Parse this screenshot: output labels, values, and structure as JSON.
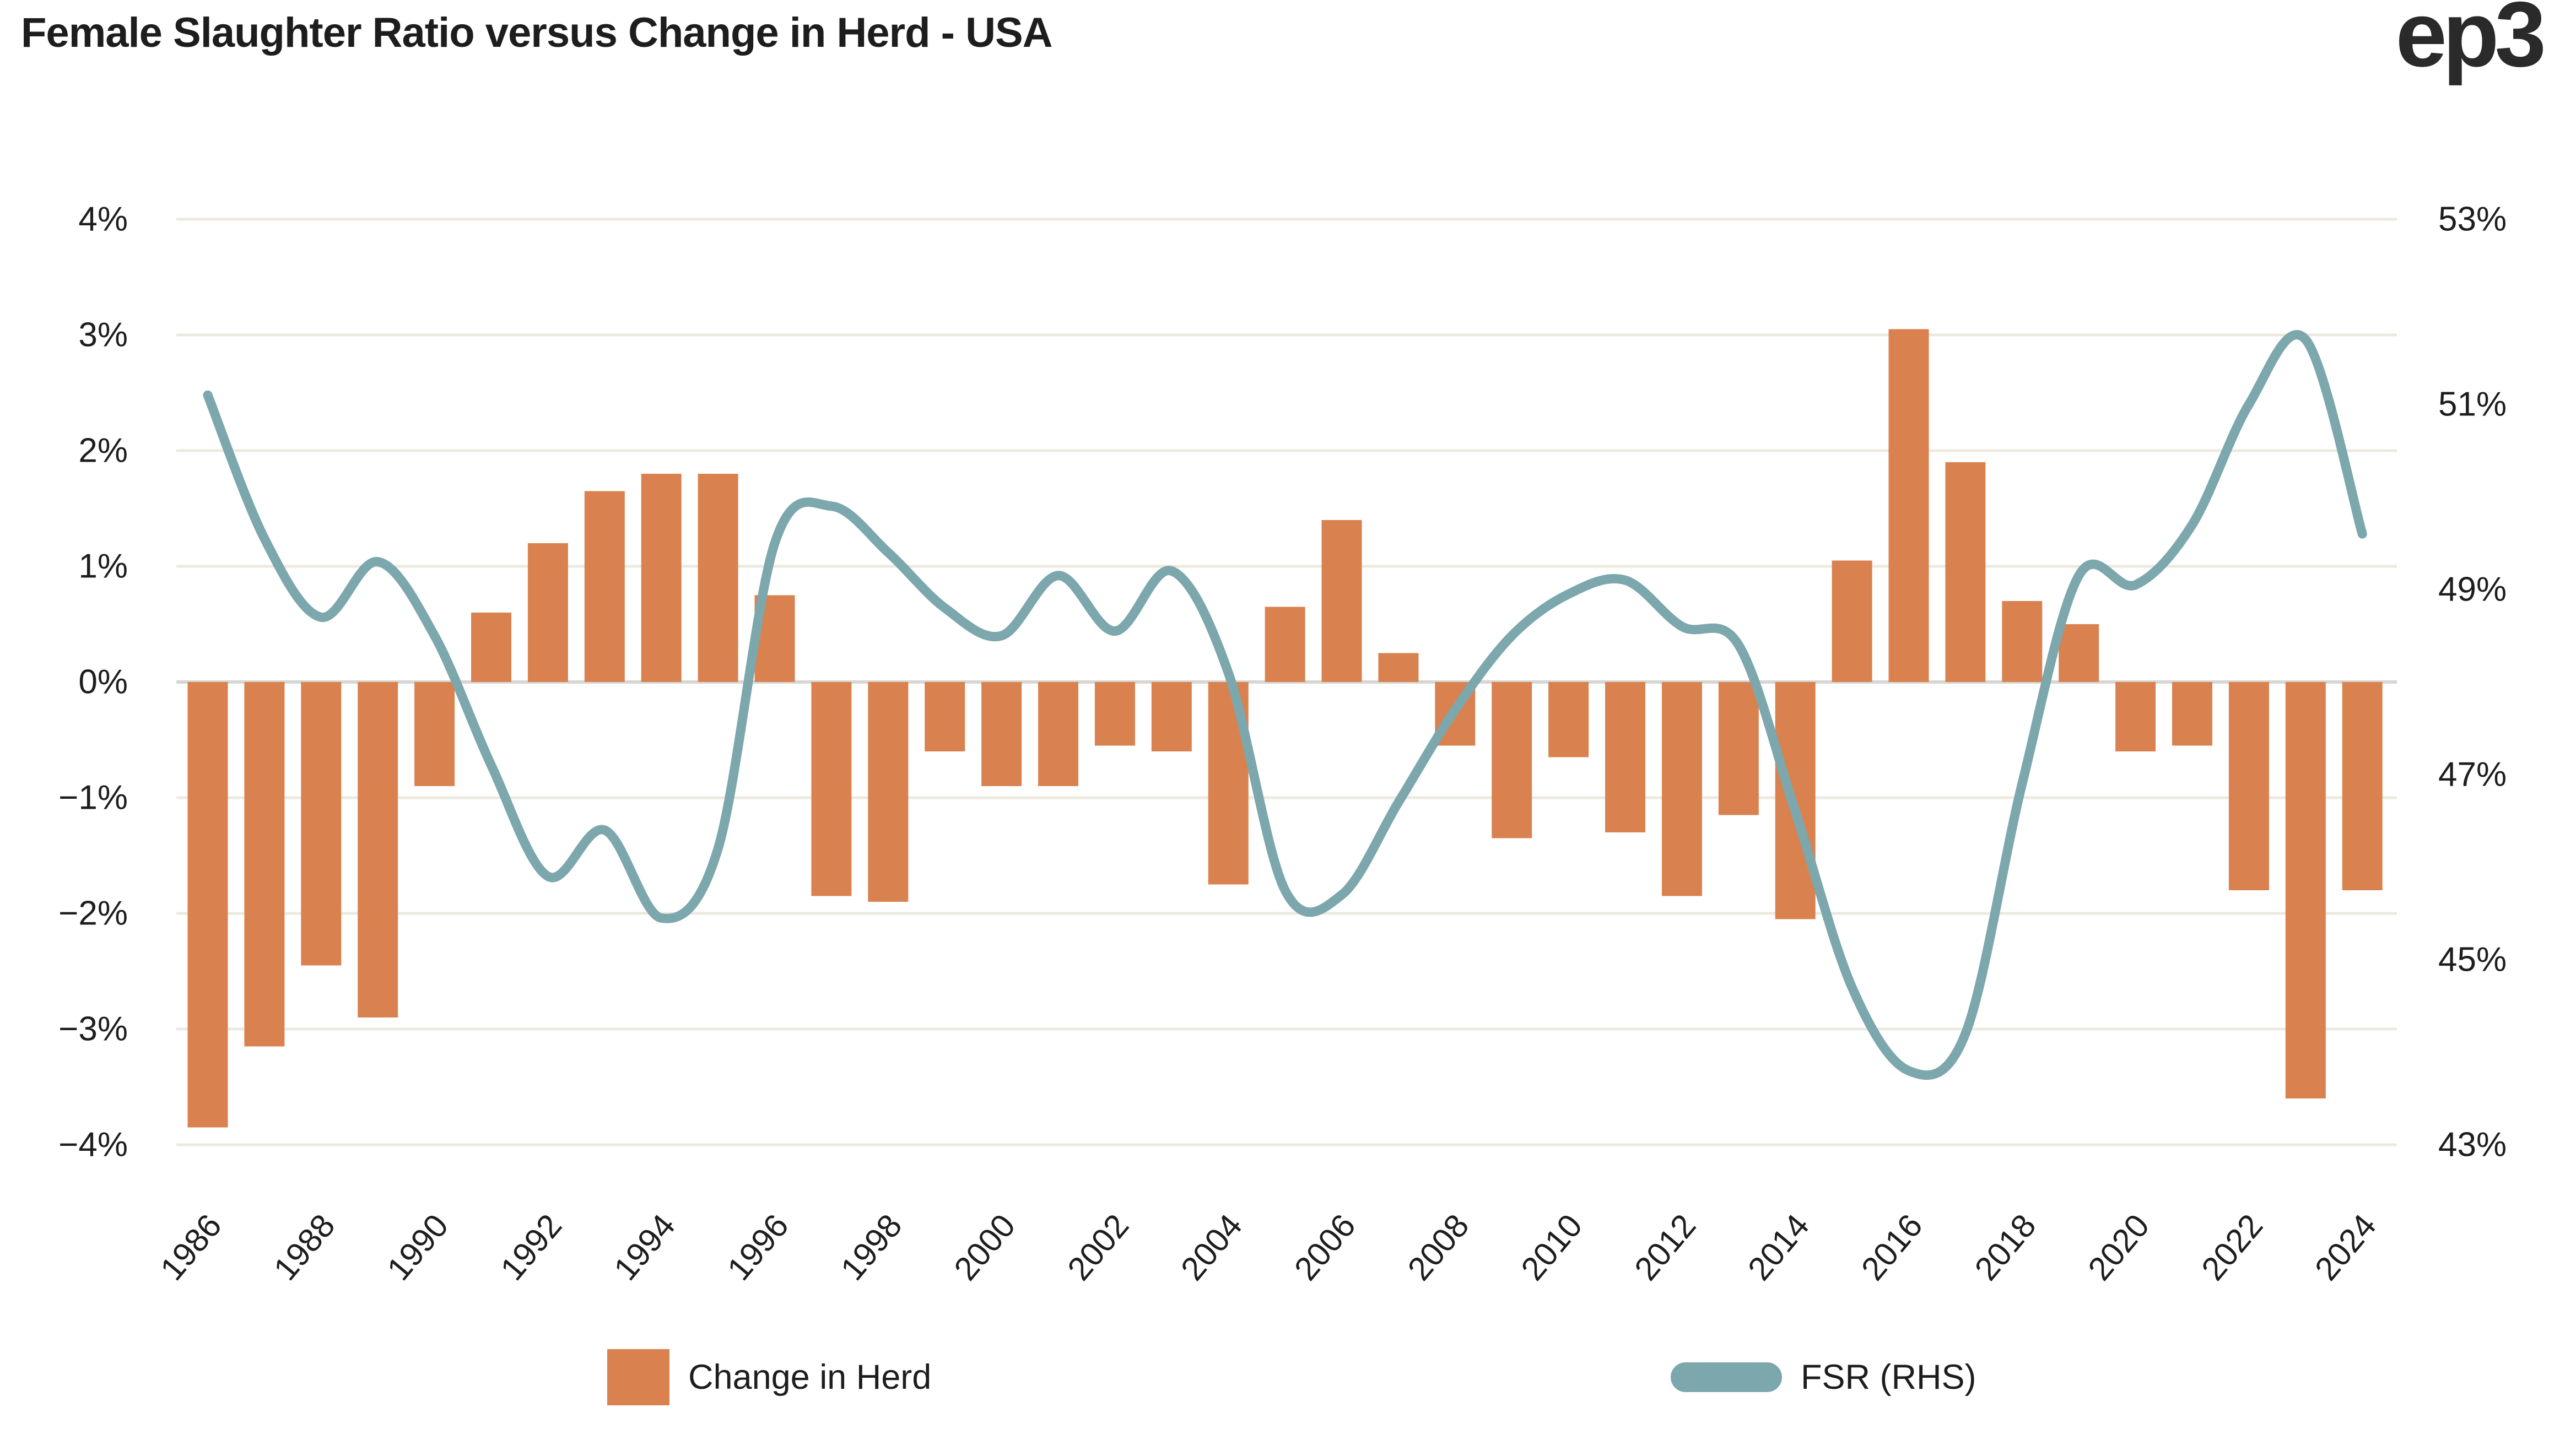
{
  "title": "Female Slaughter Ratio versus Change in Herd - USA",
  "logo": "ep3",
  "legend": {
    "items": [
      {
        "label": "Change in Herd",
        "swatch": "orange-square"
      },
      {
        "label": "FSR (RHS)",
        "swatch": "teal-line"
      }
    ]
  },
  "colors": {
    "bar": "#D9824F",
    "line": "#7CA7AC",
    "grid": "#EDE9DE",
    "zero_line": "#D7D6D3",
    "text": "#1D1D1D",
    "background": "#FFFFFF"
  },
  "chart_data": {
    "type": "combo",
    "title": "Female Slaughter Ratio versus Change in Herd - USA",
    "categories": [
      1986,
      1987,
      1988,
      1989,
      1990,
      1991,
      1992,
      1993,
      1994,
      1995,
      1996,
      1997,
      1998,
      1999,
      2000,
      2001,
      2002,
      2003,
      2004,
      2005,
      2006,
      2007,
      2008,
      2009,
      2010,
      2011,
      2012,
      2013,
      2014,
      2015,
      2016,
      2017,
      2018,
      2019,
      2020,
      2021,
      2022,
      2023,
      2024
    ],
    "series": [
      {
        "name": "Change in Herd",
        "type": "bar",
        "axis": "left",
        "values": [
          -3.85,
          -3.15,
          -2.45,
          -2.9,
          -0.9,
          0.6,
          1.2,
          1.65,
          1.8,
          1.8,
          0.75,
          -1.85,
          -1.9,
          -0.6,
          -0.9,
          -0.9,
          -0.55,
          -0.6,
          -1.75,
          0.65,
          1.4,
          0.25,
          -0.55,
          -1.35,
          -0.65,
          -1.3,
          -1.85,
          -1.15,
          -2.05,
          1.05,
          3.05,
          1.9,
          0.7,
          0.5,
          -0.6,
          -0.55,
          -1.8,
          -3.6,
          -1.8
        ]
      },
      {
        "name": "FSR (RHS)",
        "type": "line",
        "axis": "right",
        "values": [
          51.1,
          49.55,
          48.7,
          49.3,
          48.5,
          47.1,
          45.9,
          46.4,
          45.45,
          46.2,
          49.5,
          49.9,
          49.4,
          48.8,
          48.5,
          49.15,
          48.55,
          49.2,
          48.1,
          45.75,
          45.7,
          46.7,
          47.7,
          48.5,
          48.95,
          49.1,
          48.6,
          48.4,
          46.6,
          44.7,
          43.8,
          44.2,
          46.9,
          49.15,
          49.05,
          49.7,
          51.0,
          51.7,
          49.6
        ]
      }
    ],
    "left_axis": {
      "tick_labels": [
        "4%",
        "3%",
        "2%",
        "1%",
        "0%",
        "−1%",
        "−2%",
        "−3%",
        "−4%"
      ],
      "tick_values": [
        4,
        3,
        2,
        1,
        0,
        -1,
        -2,
        -3,
        -4
      ],
      "ylim": [
        -4,
        4
      ]
    },
    "right_axis": {
      "tick_labels": [
        "53%",
        "51%",
        "49%",
        "47%",
        "45%",
        "43%"
      ],
      "tick_values": [
        53,
        51,
        49,
        47,
        45,
        43
      ],
      "ylim": [
        43,
        53
      ]
    },
    "x_axis": {
      "tick_years": [
        1986,
        1988,
        1990,
        1992,
        1994,
        1996,
        1998,
        2000,
        2002,
        2004,
        2006,
        2008,
        2010,
        2012,
        2014,
        2016,
        2018,
        2020,
        2022,
        2024
      ],
      "label_rotation": -50
    },
    "grid": "horizontal-only",
    "legend_position": "bottom"
  }
}
